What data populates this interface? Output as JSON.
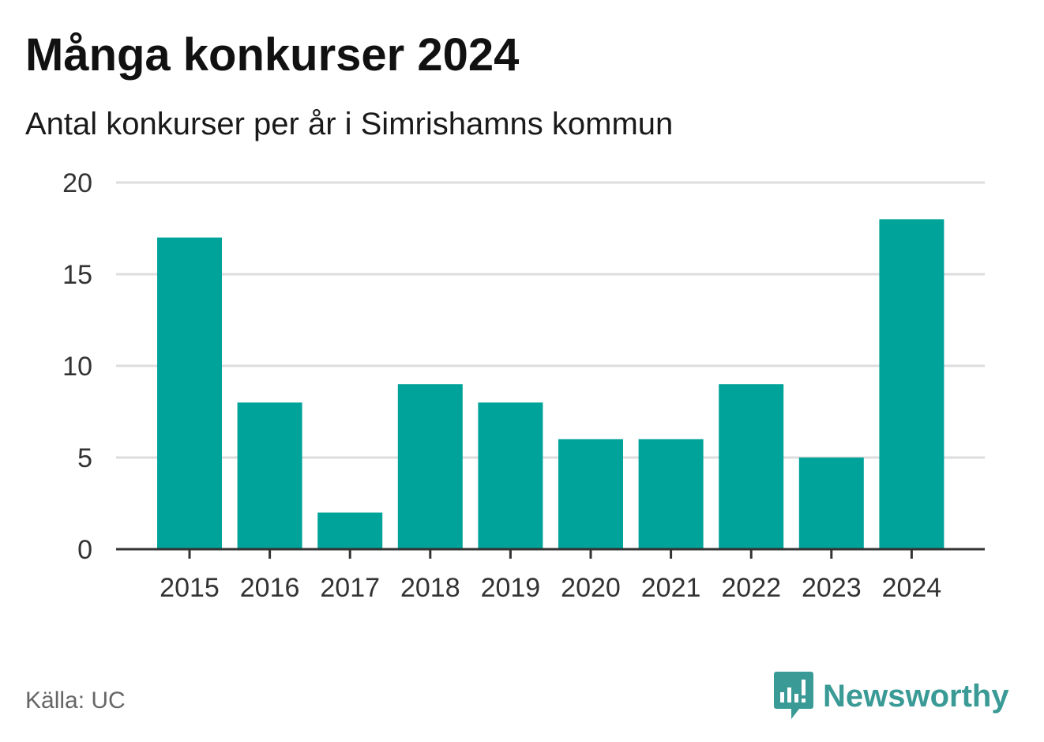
{
  "header": {
    "title": "Många konkurser 2024",
    "subtitle": "Antal konkurser per år i Simrishamns kommun"
  },
  "footer": {
    "source": "Källa: UC",
    "brand": "Newsworthy",
    "brand_icon": "newsworthy-chart-bubble-icon"
  },
  "colors": {
    "bar": "#00a39a",
    "grid": "#dddddd",
    "axis": "#333333",
    "brand": "#3a9a95"
  },
  "chart_data": {
    "type": "bar",
    "title": "Många konkurser 2024",
    "subtitle": "Antal konkurser per år i Simrishamns kommun",
    "categories": [
      "2015",
      "2016",
      "2017",
      "2018",
      "2019",
      "2020",
      "2021",
      "2022",
      "2023",
      "2024"
    ],
    "values": [
      17,
      8,
      2,
      9,
      8,
      6,
      6,
      9,
      5,
      18
    ],
    "yticks": [
      0,
      5,
      10,
      15,
      20
    ],
    "ylim": [
      0,
      20
    ],
    "xlabel": "",
    "ylabel": "",
    "grid": true,
    "legend": "none"
  }
}
